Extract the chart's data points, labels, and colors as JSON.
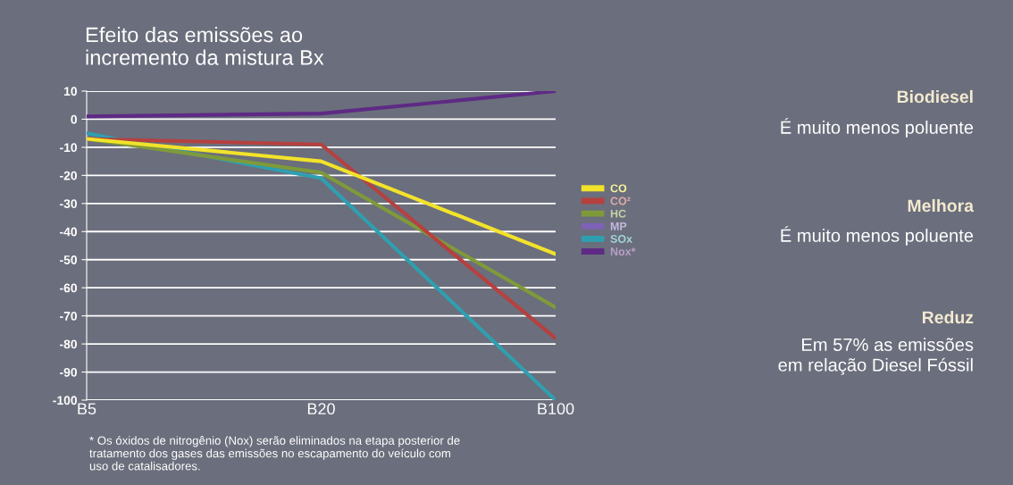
{
  "chart_data": {
    "type": "line",
    "title": "Efeito das emissões ao\nincremento da mistura Bx",
    "categories": [
      "B5",
      "B20",
      "B100"
    ],
    "series": [
      {
        "name": "CO",
        "color": "#f2e32a",
        "values": [
          -7,
          -15,
          -48
        ]
      },
      {
        "name": "CO²",
        "color": "#b5413f",
        "values": [
          -7,
          -9,
          -78
        ]
      },
      {
        "name": "HC",
        "color": "#7f9a3a",
        "values": [
          -7,
          -19,
          -67
        ]
      },
      {
        "name": "MP",
        "color": "#7e62b5",
        "values": [
          null,
          null,
          null
        ]
      },
      {
        "name": "SOx",
        "color": "#2f9fb0",
        "values": [
          -5,
          -21,
          -100
        ]
      },
      {
        "name": "Nox*",
        "color": "#5e2a85",
        "values": [
          1,
          2,
          10
        ]
      }
    ],
    "ylim": [
      -100,
      10
    ],
    "yticks": [
      -100,
      -90,
      -80,
      -70,
      -60,
      -50,
      -40,
      -30,
      -20,
      -10,
      0,
      10
    ],
    "grid": "y",
    "legend": "right",
    "marker": "none",
    "line_style": "solid",
    "annotations": [
      "* Os óxidos de nitrogênio (Nox) serão eliminados na etapa posterior de\ntratamento dos gases das emissões no escapamento do veículo com\nuso de catalisadores.",
      "Biodiesel",
      "É muito menos poluente",
      "Melhora",
      "É muito menos poluente",
      "Reduz",
      "Em 57% as emissões\nem relação Diesel Fóssil"
    ]
  }
}
